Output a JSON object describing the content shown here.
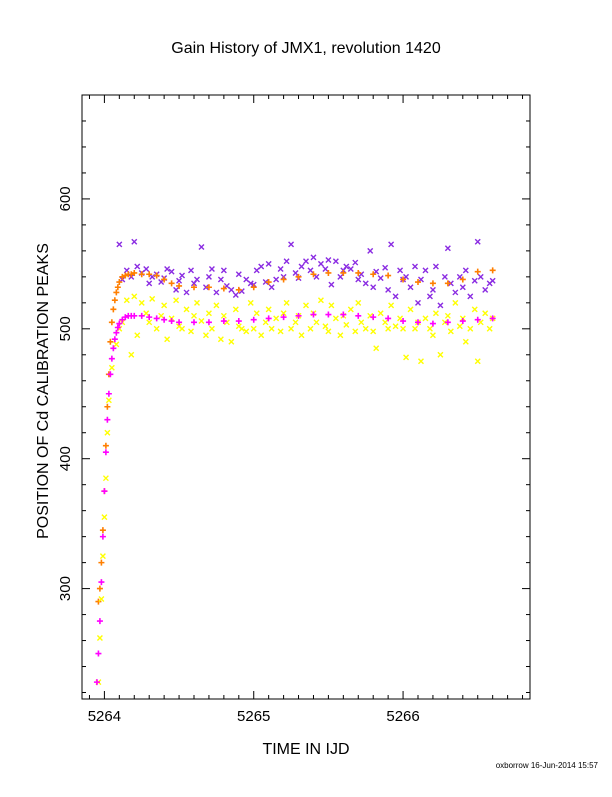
{
  "chart_data": {
    "type": "scatter",
    "title": "Gain History of JMX1, revolution 1420",
    "xlabel": "TIME IN IJD",
    "ylabel": "POSITION OF Cd CALIBRATION PEAKS",
    "xlim": [
      5263.85,
      5266.85
    ],
    "ylim": [
      215,
      680
    ],
    "xticks": [
      5264,
      5265,
      5266
    ],
    "yticks": [
      300,
      400,
      500,
      600
    ],
    "grid": false,
    "legend": "none",
    "colors": {
      "upper_scatter": "#8a2be2",
      "upper_smooth": "#ff7f00",
      "lower_scatter": "#ffff00",
      "lower_smooth": "#ff00ff"
    },
    "series": [
      {
        "role": "upper_scatter",
        "marker": "x",
        "x": [
          5264.1,
          5264.12,
          5264.15,
          5264.18,
          5264.2,
          5264.22,
          5264.25,
          5264.28,
          5264.3,
          5264.32,
          5264.35,
          5264.38,
          5264.4,
          5264.42,
          5264.45,
          5264.48,
          5264.5,
          5264.52,
          5264.55,
          5264.58,
          5264.6,
          5264.62,
          5264.65,
          5264.68,
          5264.7,
          5264.72,
          5264.75,
          5264.78,
          5264.8,
          5264.82,
          5264.85,
          5264.88,
          5264.9,
          5264.92,
          5264.95,
          5264.98,
          5265.0,
          5265.02,
          5265.05,
          5265.08,
          5265.1,
          5265.12,
          5265.15,
          5265.18,
          5265.2,
          5265.22,
          5265.25,
          5265.28,
          5265.3,
          5265.32,
          5265.35,
          5265.38,
          5265.4,
          5265.42,
          5265.45,
          5265.48,
          5265.5,
          5265.52,
          5265.55,
          5265.58,
          5265.6,
          5265.62,
          5265.65,
          5265.68,
          5265.7,
          5265.72,
          5265.75,
          5265.78,
          5265.8,
          5265.82,
          5265.85,
          5265.88,
          5265.9,
          5265.92,
          5265.95,
          5265.98,
          5266.0,
          5266.02,
          5266.05,
          5266.08,
          5266.1,
          5266.12,
          5266.15,
          5266.18,
          5266.2,
          5266.22,
          5266.25,
          5266.28,
          5266.3,
          5266.32,
          5266.35,
          5266.38,
          5266.4,
          5266.42,
          5266.45,
          5266.48,
          5266.5,
          5266.52,
          5266.55,
          5266.58,
          5266.6
        ],
        "y": [
          565,
          538,
          545,
          540,
          567,
          548,
          543,
          546,
          535,
          540,
          542,
          536,
          539,
          546,
          544,
          530,
          537,
          541,
          528,
          545,
          535,
          538,
          563,
          532,
          540,
          546,
          528,
          538,
          545,
          533,
          530,
          526,
          542,
          529,
          538,
          535,
          534,
          545,
          548,
          536,
          550,
          532,
          538,
          546,
          540,
          552,
          565,
          543,
          539,
          548,
          552,
          545,
          555,
          540,
          550,
          546,
          553,
          534,
          552,
          540,
          545,
          548,
          546,
          551,
          538,
          542,
          535,
          560,
          532,
          544,
          539,
          547,
          530,
          565,
          525,
          545,
          538,
          540,
          532,
          548,
          520,
          538,
          545,
          525,
          530,
          548,
          518,
          540,
          562,
          535,
          528,
          540,
          532,
          545,
          525,
          537,
          567,
          540,
          530,
          535,
          537
        ]
      },
      {
        "role": "upper_smooth",
        "marker": "+",
        "x": [
          5263.96,
          5263.97,
          5263.98,
          5263.99,
          5264.0,
          5264.01,
          5264.02,
          5264.03,
          5264.04,
          5264.05,
          5264.06,
          5264.07,
          5264.08,
          5264.09,
          5264.1,
          5264.12,
          5264.14,
          5264.16,
          5264.18,
          5264.2,
          5264.25,
          5264.3,
          5264.35,
          5264.4,
          5264.45,
          5264.5,
          5264.6,
          5264.7,
          5264.8,
          5264.9,
          5265.0,
          5265.1,
          5265.2,
          5265.3,
          5265.4,
          5265.5,
          5265.6,
          5265.7,
          5265.8,
          5265.9,
          5266.0,
          5266.1,
          5266.2,
          5266.3,
          5266.4,
          5266.5,
          5266.6
        ],
        "y": [
          290,
          300,
          320,
          345,
          375,
          410,
          440,
          465,
          490,
          505,
          515,
          522,
          528,
          532,
          536,
          540,
          541,
          542,
          542,
          543,
          542,
          542,
          541,
          538,
          535,
          533,
          532,
          532,
          531,
          530,
          532,
          536,
          538,
          540,
          542,
          543,
          543,
          543,
          542,
          541,
          538,
          536,
          535,
          535,
          538,
          544,
          545
        ]
      },
      {
        "role": "lower_scatter",
        "marker": "x",
        "x": [
          5263.96,
          5263.97,
          5263.98,
          5263.99,
          5264.0,
          5264.01,
          5264.02,
          5264.03,
          5264.05,
          5264.08,
          5264.1,
          5264.12,
          5264.15,
          5264.18,
          5264.2,
          5264.22,
          5264.25,
          5264.28,
          5264.3,
          5264.32,
          5264.35,
          5264.38,
          5264.4,
          5264.42,
          5264.45,
          5264.48,
          5264.5,
          5264.52,
          5264.55,
          5264.58,
          5264.6,
          5264.62,
          5264.65,
          5264.68,
          5264.7,
          5264.72,
          5264.75,
          5264.78,
          5264.8,
          5264.82,
          5264.85,
          5264.88,
          5264.9,
          5264.92,
          5264.95,
          5264.98,
          5265.0,
          5265.02,
          5265.05,
          5265.08,
          5265.1,
          5265.12,
          5265.15,
          5265.18,
          5265.2,
          5265.22,
          5265.25,
          5265.28,
          5265.3,
          5265.32,
          5265.35,
          5265.38,
          5265.4,
          5265.42,
          5265.45,
          5265.48,
          5265.5,
          5265.52,
          5265.55,
          5265.58,
          5265.6,
          5265.62,
          5265.65,
          5265.68,
          5265.7,
          5265.72,
          5265.75,
          5265.78,
          5265.8,
          5265.82,
          5265.85,
          5265.88,
          5265.9,
          5265.92,
          5265.95,
          5265.98,
          5266.0,
          5266.02,
          5266.05,
          5266.08,
          5266.1,
          5266.12,
          5266.15,
          5266.18,
          5266.2,
          5266.22,
          5266.25,
          5266.28,
          5266.3,
          5266.32,
          5266.35,
          5266.38,
          5266.4,
          5266.42,
          5266.45,
          5266.48,
          5266.5,
          5266.52,
          5266.55,
          5266.58,
          5266.6
        ],
        "y": [
          228,
          262,
          292,
          325,
          355,
          385,
          420,
          445,
          470,
          488,
          500,
          505,
          522,
          480,
          525,
          495,
          520,
          512,
          505,
          523,
          500,
          510,
          518,
          492,
          508,
          522,
          502,
          500,
          515,
          498,
          510,
          520,
          506,
          495,
          512,
          500,
          518,
          492,
          510,
          505,
          490,
          515,
          502,
          500,
          498,
          520,
          500,
          512,
          495,
          505,
          515,
          500,
          508,
          498,
          512,
          520,
          500,
          505,
          510,
          495,
          518,
          500,
          512,
          505,
          522,
          502,
          498,
          518,
          508,
          495,
          510,
          503,
          515,
          498,
          520,
          505,
          500,
          510,
          498,
          485,
          512,
          505,
          500,
          518,
          502,
          508,
          500,
          478,
          515,
          500,
          505,
          475,
          508,
          500,
          495,
          512,
          480,
          505,
          510,
          498,
          520,
          502,
          508,
          490,
          500,
          515,
          475,
          505,
          512,
          500,
          508
        ]
      },
      {
        "role": "lower_smooth",
        "marker": "+",
        "x": [
          5263.95,
          5263.96,
          5263.97,
          5263.98,
          5263.99,
          5264.0,
          5264.01,
          5264.02,
          5264.03,
          5264.04,
          5264.05,
          5264.06,
          5264.07,
          5264.08,
          5264.09,
          5264.1,
          5264.12,
          5264.14,
          5264.16,
          5264.18,
          5264.2,
          5264.25,
          5264.3,
          5264.35,
          5264.4,
          5264.45,
          5264.5,
          5264.6,
          5264.7,
          5264.8,
          5264.9,
          5265.0,
          5265.1,
          5265.2,
          5265.3,
          5265.4,
          5265.5,
          5265.6,
          5265.7,
          5265.8,
          5265.9,
          5266.0,
          5266.1,
          5266.2,
          5266.3,
          5266.4,
          5266.5,
          5266.6
        ],
        "y": [
          228,
          250,
          275,
          305,
          340,
          375,
          405,
          430,
          450,
          465,
          477,
          485,
          492,
          497,
          501,
          504,
          507,
          509,
          510,
          510,
          510,
          510,
          509,
          508,
          507,
          506,
          505,
          505,
          505,
          506,
          506,
          507,
          508,
          509,
          510,
          511,
          511,
          511,
          510,
          509,
          508,
          506,
          505,
          504,
          505,
          506,
          507,
          508
        ]
      }
    ]
  },
  "footer": "oxborrow 16-Jun-2014 15:57"
}
